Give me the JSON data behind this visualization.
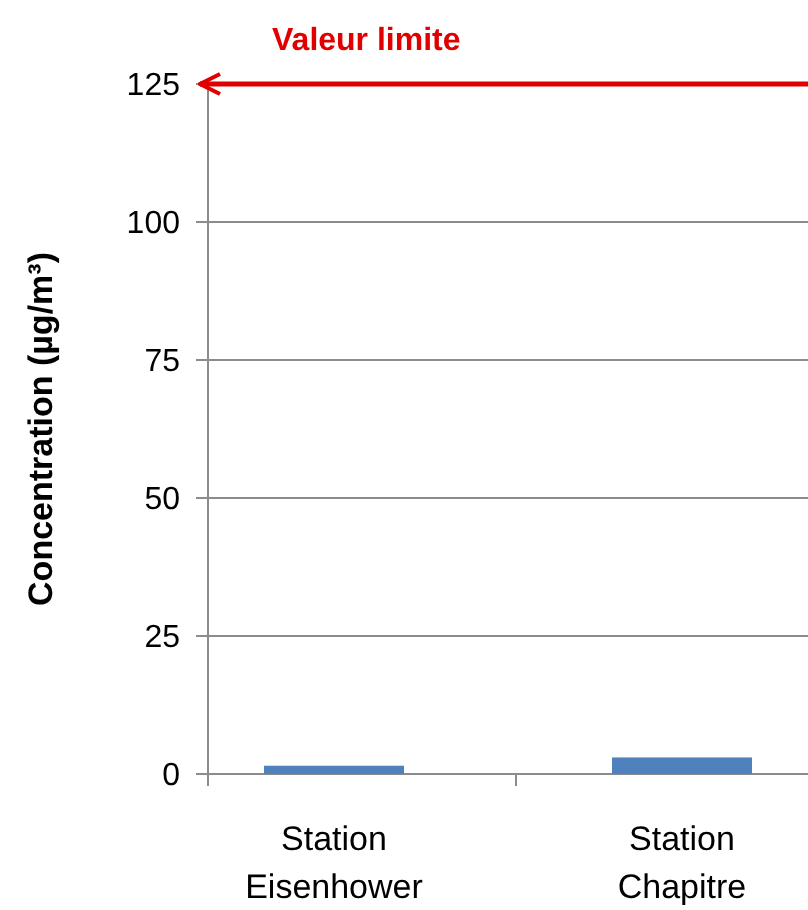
{
  "chart_data": {
    "type": "bar",
    "ylabel": "Concentration (µg/m³)",
    "categories": [
      "Station Eisenhower",
      "Station Chapitre"
    ],
    "values": [
      1.5,
      3
    ],
    "color": "#4f81bd",
    "ylim": [
      0,
      125
    ],
    "yticks": [
      0,
      25,
      50,
      75,
      100,
      125
    ],
    "grid": "y",
    "ref_lines": [
      {
        "axis": "y",
        "value": 125,
        "label": "Valeur limite",
        "color": "#e00000"
      }
    ]
  }
}
